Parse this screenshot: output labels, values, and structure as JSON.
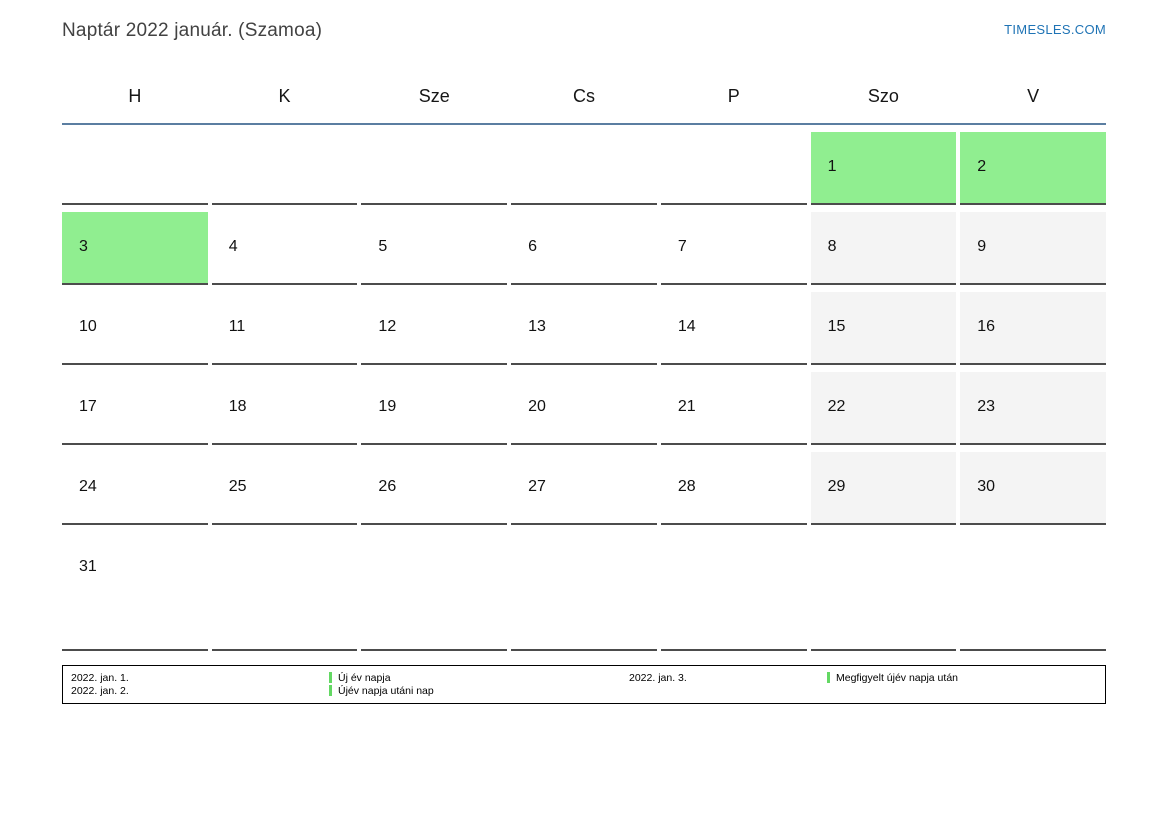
{
  "page": {
    "title": "Naptár 2022 január. (Szamoa)",
    "brand": "TIMESLES.COM"
  },
  "calendar": {
    "day_headers": [
      "H",
      "K",
      "Sze",
      "Cs",
      "P",
      "Szo",
      "V"
    ],
    "weeks": [
      [
        "",
        "",
        "",
        "",
        "",
        "1",
        "2"
      ],
      [
        "3",
        "4",
        "5",
        "6",
        "7",
        "8",
        "9"
      ],
      [
        "10",
        "11",
        "12",
        "13",
        "14",
        "15",
        "16"
      ],
      [
        "17",
        "18",
        "19",
        "20",
        "21",
        "22",
        "23"
      ],
      [
        "24",
        "25",
        "26",
        "27",
        "28",
        "29",
        "30"
      ],
      [
        "31",
        "",
        "",
        "",
        "",
        "",
        ""
      ]
    ],
    "holiday_days": [
      "1",
      "2",
      "3"
    ]
  },
  "legend": {
    "columns": [
      {
        "type": "dates",
        "items": [
          "2022. jan. 1.",
          "2022. jan. 2."
        ]
      },
      {
        "type": "labels",
        "items": [
          "Új év napja",
          "Újév napja utáni nap"
        ]
      },
      {
        "type": "dates",
        "items": [
          "2022. jan. 3."
        ]
      },
      {
        "type": "labels",
        "items": [
          "Megfigyelt újév napja után"
        ]
      }
    ]
  },
  "colors": {
    "holiday_green": "#90ee90",
    "weekend_gray": "#f4f4f4",
    "brand_blue": "#1e73b5",
    "header_line_blue": "#5b7ea1",
    "cell_border_gray": "#4c4c4c",
    "legend_marker_green": "#63d863",
    "title_gray": "#424242"
  }
}
